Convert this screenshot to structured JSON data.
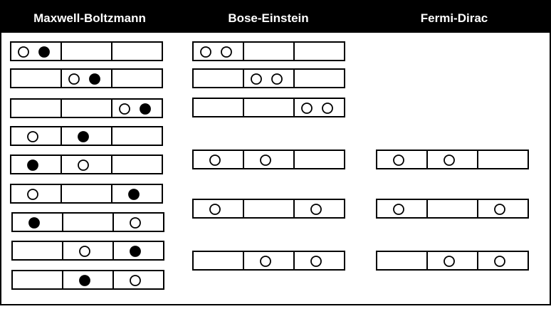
{
  "columns": [
    {
      "title": "Maxwell-Boltzmann",
      "rows": [
        [
          [
            "open",
            "filled"
          ],
          [],
          []
        ],
        [
          [],
          [
            "open",
            "filled"
          ],
          []
        ],
        [
          [],
          [],
          [
            "open",
            "filled"
          ]
        ],
        [
          [
            "open"
          ],
          [
            "filled"
          ],
          []
        ],
        [
          [
            "filled"
          ],
          [
            "open"
          ],
          []
        ],
        [
          [
            "open"
          ],
          [],
          [
            "filled"
          ]
        ],
        [
          [
            "filled"
          ],
          [],
          [
            "open"
          ]
        ],
        [
          [],
          [
            "open"
          ],
          [
            "filled"
          ]
        ],
        [
          [],
          [
            "filled"
          ],
          [
            "open"
          ]
        ]
      ]
    },
    {
      "title": "Bose-Einstein",
      "rows": [
        [
          [
            "open",
            "open"
          ],
          [],
          []
        ],
        [
          [],
          [
            "open",
            "open"
          ],
          []
        ],
        [
          [],
          [],
          [
            "open",
            "open"
          ]
        ],
        [
          [
            "open"
          ],
          [
            "open"
          ],
          []
        ],
        [
          [
            "open"
          ],
          [],
          [
            "open"
          ]
        ],
        [
          [],
          [
            "open"
          ],
          [
            "open"
          ]
        ]
      ]
    },
    {
      "title": "Fermi-Dirac",
      "rows": [
        [
          [
            "open"
          ],
          [
            "open"
          ],
          []
        ],
        [
          [
            "open"
          ],
          [],
          [
            "open"
          ]
        ],
        [
          [],
          [
            "open"
          ],
          [
            "open"
          ]
        ]
      ]
    }
  ],
  "colors": {
    "header_background": "#000000",
    "header_text": "#ffffff",
    "border": "#000000",
    "filled_particle": "#000000",
    "open_particle": "#ffffff"
  }
}
